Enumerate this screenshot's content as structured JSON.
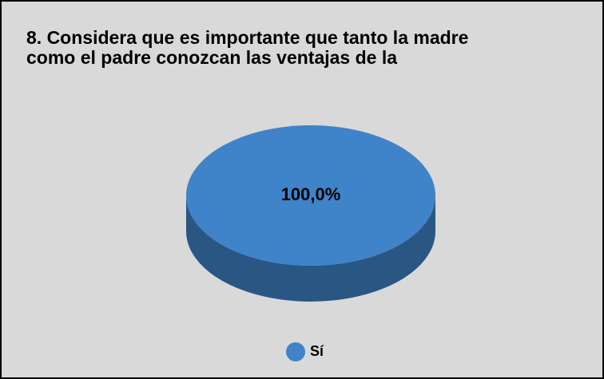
{
  "chart_data": {
    "type": "pie",
    "title": [
      "8. Considera que es importante que tanto la madre",
      "como el padre conozcan las ventajas de la"
    ],
    "categories": [
      "Sí"
    ],
    "values": [
      100
    ],
    "value_labels": [
      "100,0%"
    ],
    "colors": [
      "#3f83c8"
    ],
    "legend": "bottom"
  }
}
